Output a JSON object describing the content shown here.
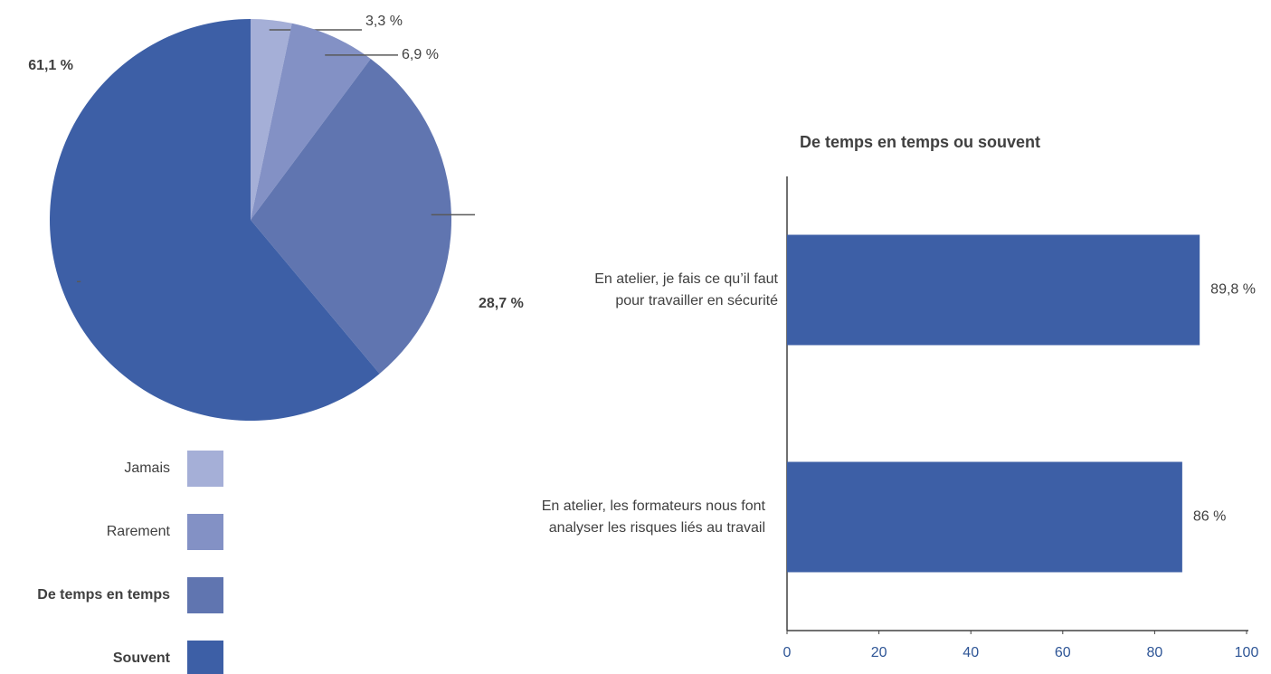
{
  "chart_data": [
    {
      "type": "pie",
      "categories": [
        "Jamais",
        "Rarement",
        "De temps en temps",
        "Souvent"
      ],
      "values": [
        3.3,
        6.9,
        28.7,
        61.1
      ],
      "value_labels": [
        "3,3 %",
        "6,9 %",
        "28,7 %",
        "61,1 %"
      ],
      "colors": [
        "#a5afd7",
        "#8391c5",
        "#6075b0",
        "#3d5fa6"
      ]
    },
    {
      "type": "barh",
      "title": "De temps en temps ou souvent",
      "categories": [
        "En atelier, je fais ce qu’il faut pour travailler en sécurité",
        "En atelier, les formateurs nous font analyser les risques liés au travail"
      ],
      "values": [
        89.8,
        86
      ],
      "value_labels": [
        "89,8 %",
        "86 %"
      ],
      "color": "#3d5fa6",
      "xlim": [
        0,
        100
      ],
      "xticks": [
        0,
        20,
        40,
        60,
        80,
        100
      ]
    }
  ]
}
